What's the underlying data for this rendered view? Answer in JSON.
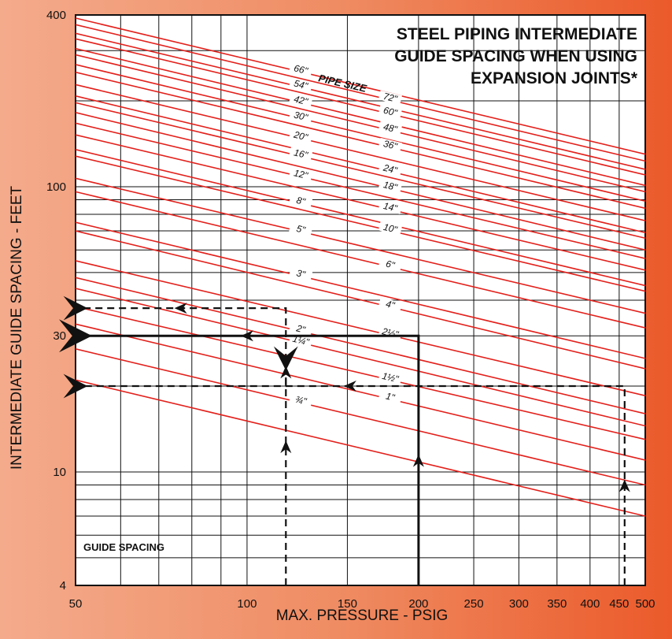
{
  "chart_data": {
    "type": "line",
    "title": "STEEL PIPING INTERMEDIATE GUIDE SPACING WHEN USING EXPANSION JOINTS*",
    "title_lines": [
      "STEEL PIPING INTERMEDIATE",
      "GUIDE SPACING WHEN USING",
      "EXPANSION JOINTS*"
    ],
    "xlabel": "MAX. PRESSURE - PSIG",
    "ylabel": "INTERMEDIATE GUIDE SPACING - FEET",
    "x_scale": "log",
    "y_scale": "log",
    "xlim": [
      50,
      500
    ],
    "ylim": [
      4,
      400
    ],
    "x_ticks": [
      50,
      100,
      150,
      200,
      250,
      300,
      350,
      400,
      450,
      500
    ],
    "y_ticks": [
      4,
      10,
      30,
      100,
      400
    ],
    "grid": true,
    "legend_title": "PIPE SIZE",
    "corner_label": "GUIDE SPACING",
    "line_color": "#e3201b",
    "series": [
      {
        "name": "66\"",
        "label_x": 124,
        "values_at_50_500": [
          390,
          130
        ]
      },
      {
        "name": "72\"",
        "label_x": 178,
        "values_at_50_500": [
          370,
          123
        ]
      },
      {
        "name": "54\"",
        "label_x": 124,
        "values_at_50_500": [
          345,
          115
        ]
      },
      {
        "name": "60\"",
        "label_x": 178,
        "values_at_50_500": [
          330,
          110
        ]
      },
      {
        "name": "42\"",
        "label_x": 124,
        "values_at_50_500": [
          305,
          101
        ]
      },
      {
        "name": "48\"",
        "label_x": 178,
        "values_at_50_500": [
          290,
          96
        ]
      },
      {
        "name": "30\"",
        "label_x": 124,
        "values_at_50_500": [
          268,
          89
        ]
      },
      {
        "name": "36\"",
        "label_x": 178,
        "values_at_50_500": [
          252,
          84
        ]
      },
      {
        "name": "20\"",
        "label_x": 124,
        "values_at_50_500": [
          228,
          76
        ]
      },
      {
        "name": "24\"",
        "label_x": 178,
        "values_at_50_500": [
          208,
          69
        ]
      },
      {
        "name": "16\"",
        "label_x": 124,
        "values_at_50_500": [
          197,
          66
        ]
      },
      {
        "name": "18\"",
        "label_x": 178,
        "values_at_50_500": [
          182,
          60
        ]
      },
      {
        "name": "12\"",
        "label_x": 124,
        "values_at_50_500": [
          167,
          56
        ]
      },
      {
        "name": "14\"",
        "label_x": 178,
        "values_at_50_500": [
          152,
          51
        ]
      },
      {
        "name": "8\"",
        "label_x": 124,
        "values_at_50_500": [
          135,
          45
        ]
      },
      {
        "name": "10\"",
        "label_x": 178,
        "values_at_50_500": [
          128,
          43
        ]
      },
      {
        "name": "5\"",
        "label_x": 124,
        "values_at_50_500": [
          107,
          36
        ]
      },
      {
        "name": "6\"",
        "label_x": 178,
        "values_at_50_500": [
          96,
          32
        ]
      },
      {
        "name": "3\"",
        "label_x": 124,
        "values_at_50_500": [
          75,
          25
        ]
      },
      {
        "name": "4\"",
        "label_x": 178,
        "values_at_50_500": [
          70,
          23
        ]
      },
      {
        "name": "2½\"",
        "label_x": 178,
        "values_at_50_500": [
          55,
          18.5
        ]
      },
      {
        "name": "2\"",
        "label_x": 124,
        "values_at_50_500": [
          48,
          16
        ]
      },
      {
        "name": "1¼\"",
        "label_x": 124,
        "values_at_50_500": [
          44,
          14.5
        ]
      },
      {
        "name": "1½\"",
        "label_x": 178,
        "values_at_50_500": [
          38,
          13
        ]
      },
      {
        "name": "1\"",
        "label_x": 178,
        "values_at_50_500": [
          33,
          11
        ]
      },
      {
        "name": "¾\"",
        "label_x": 124,
        "values_at_50_500": [
          27,
          9
        ]
      },
      {
        "name": "",
        "label_x": 0,
        "values_at_50_500": [
          21,
          7
        ]
      }
    ],
    "example_paths": [
      {
        "style": "dashed",
        "points": [
          [
            117,
            4
          ],
          [
            117,
            37.5
          ],
          [
            50,
            37.5
          ]
        ]
      },
      {
        "style": "solid",
        "points": [
          [
            200,
            4
          ],
          [
            200,
            30
          ],
          [
            50,
            30
          ]
        ]
      },
      {
        "style": "dashed",
        "points": [
          [
            460,
            4
          ],
          [
            460,
            20
          ],
          [
            50,
            20
          ]
        ]
      },
      {
        "style": "dashed",
        "points": [
          [
            117,
            20
          ],
          [
            117,
            25
          ]
        ]
      }
    ]
  }
}
